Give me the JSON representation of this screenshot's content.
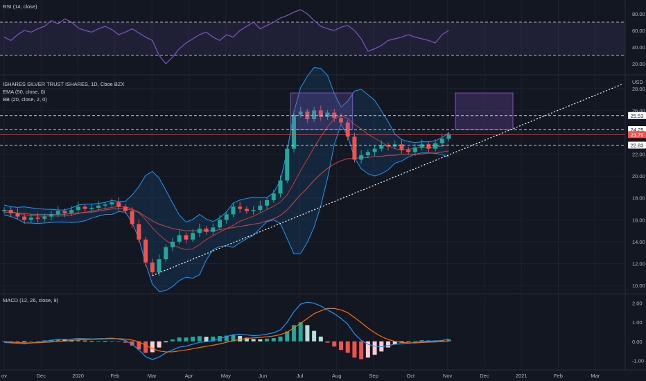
{
  "legends": {
    "rsi": "RSI (14, close)",
    "price_title": "ISHARES SILVER TRUST ISHARES, 1D, Cboe BZX",
    "ema": "EMA (50, close, 0)",
    "bb": "BB (20, close, 2, 0)",
    "macd": "MACD (12, 26, close, 9)"
  },
  "currency": "USD",
  "time_axis": [
    "ov",
    "Dec",
    "2020",
    "Feb",
    "Mar",
    "Apr",
    "May",
    "Jun",
    "Jul",
    "Aug",
    "Sep",
    "Oct",
    "Nov",
    "Dec",
    "2021",
    "Feb",
    "Mar"
  ],
  "price_tags": [
    {
      "label": "25.53",
      "value": 25.53,
      "bg": "#ffffff",
      "fg": "#131722"
    },
    {
      "label": "24.25",
      "value": 24.25,
      "bg": "#ffffff",
      "fg": "#131722"
    },
    {
      "label": "23.79",
      "value": 23.79,
      "bg": "#ef5350",
      "fg": "#ffffff"
    },
    {
      "label": "22.83",
      "value": 22.83,
      "bg": "#ffffff",
      "fg": "#131722"
    }
  ],
  "colors": {
    "background": "#131722",
    "grid": "#1e222d",
    "up": "#26a69a",
    "down": "#ef5350",
    "rsi_line": "#7e57c2",
    "rsi_band": "#7e57c2",
    "ema": "#ef5350",
    "bb_basis": "#f44336",
    "bb_band": "#2196f3",
    "macd_line": "#2196f3",
    "signal_line": "#ff6d00",
    "box": "#7e57c2",
    "trendline": "#ffffff"
  },
  "chart_data": [
    {
      "type": "line",
      "name": "RSI (14, close)",
      "ylim": [
        10,
        90
      ],
      "y_ticks": [
        "80.00",
        "60.00",
        "40.00",
        "20.00"
      ],
      "levels": [
        70,
        30
      ],
      "series": [
        {
          "values": [
            52,
            48,
            55,
            60,
            58,
            62,
            65,
            72,
            68,
            74,
            70,
            63,
            60,
            58,
            62,
            65,
            61,
            55,
            58,
            62,
            57,
            52,
            48,
            30,
            20,
            28,
            38,
            45,
            50,
            55,
            58,
            52,
            48,
            55,
            52,
            60,
            65,
            70,
            62,
            66,
            70,
            75,
            78,
            82,
            85,
            80,
            72,
            65,
            62,
            60,
            64,
            66,
            60,
            50,
            35,
            38,
            42,
            48,
            50,
            52,
            55,
            52,
            50,
            48,
            45,
            55,
            60
          ]
        }
      ]
    },
    {
      "type": "candlestick",
      "name": "ISHARES SILVER TRUST ISHARES, 1D, Cboe BZX",
      "ylim": [
        9.5,
        29
      ],
      "y_ticks": [
        "28.00",
        "26.00",
        "24.00",
        "22.00",
        "20.00",
        "18.00",
        "16.00",
        "14.00",
        "12.00",
        "10.00"
      ],
      "close": [
        16.9,
        16.6,
        16.3,
        16.0,
        16.2,
        16.1,
        16.3,
        16.5,
        16.8,
        16.6,
        16.9,
        17.2,
        17.0,
        17.1,
        17.3,
        17.4,
        17.6,
        17.2,
        16.8,
        15.6,
        14.2,
        12.1,
        11.2,
        12.4,
        13.5,
        14.0,
        14.6,
        14.2,
        14.8,
        15.2,
        14.9,
        15.3,
        16.0,
        16.5,
        17.2,
        17.0,
        16.8,
        16.9,
        17.3,
        17.8,
        18.4,
        19.6,
        22.5,
        25.6,
        25.9,
        25.2,
        26.0,
        25.4,
        25.8,
        25.3,
        24.9,
        23.6,
        21.5,
        21.9,
        22.2,
        22.5,
        22.8,
        22.7,
        22.9,
        22.4,
        22.2,
        22.6,
        22.9,
        22.5,
        23.0,
        23.4,
        23.79
      ],
      "ema50": [
        16.7,
        16.7,
        16.6,
        16.6,
        16.5,
        16.5,
        16.5,
        16.5,
        16.5,
        16.5,
        16.6,
        16.6,
        16.7,
        16.7,
        16.8,
        16.9,
        17.0,
        17.0,
        17.0,
        16.9,
        16.7,
        16.3,
        15.9,
        15.6,
        15.4,
        15.2,
        15.1,
        15.0,
        15.0,
        15.0,
        15.0,
        15.0,
        15.1,
        15.2,
        15.3,
        15.4,
        15.5,
        15.6,
        15.7,
        15.9,
        16.1,
        16.4,
        16.9,
        17.6,
        18.3,
        18.9,
        19.6,
        20.2,
        20.7,
        21.1,
        21.4,
        21.6,
        21.6,
        21.7,
        21.7,
        21.8,
        21.8,
        21.9,
        21.9,
        22.0,
        22.0,
        22.0,
        22.0,
        22.1,
        22.1,
        22.2,
        22.3
      ]
    },
    {
      "type": "line",
      "name": "MACD (12, 26, close, 9)",
      "ylim": [
        -1.35,
        2.35
      ],
      "y_ticks": [
        "2.00",
        "1.00",
        "0.00",
        "-1.00"
      ],
      "series": [
        {
          "values": [
            -0.05,
            -0.08,
            -0.1,
            -0.12,
            -0.08,
            -0.05,
            0.0,
            0.05,
            0.1,
            0.1,
            0.12,
            0.15,
            0.14,
            0.13,
            0.14,
            0.15,
            0.17,
            0.12,
            0.05,
            -0.15,
            -0.45,
            -0.8,
            -0.95,
            -0.82,
            -0.6,
            -0.45,
            -0.3,
            -0.25,
            -0.15,
            -0.05,
            -0.02,
            0.05,
            0.15,
            0.25,
            0.35,
            0.38,
            0.34,
            0.3,
            0.32,
            0.38,
            0.45,
            0.6,
            1.0,
            1.55,
            1.95,
            2.05,
            2.0,
            1.85,
            1.65,
            1.45,
            1.2,
            0.9,
            0.4,
            0.05,
            -0.15,
            -0.25,
            -0.28,
            -0.22,
            -0.15,
            -0.12,
            -0.1,
            -0.05,
            0.0,
            0.0,
            0.02,
            0.05,
            0.12
          ]
        },
        {
          "values": [
            -0.02,
            -0.04,
            -0.06,
            -0.08,
            -0.08,
            -0.07,
            -0.05,
            -0.03,
            0.0,
            0.02,
            0.05,
            0.08,
            0.1,
            0.11,
            0.12,
            0.13,
            0.14,
            0.14,
            0.12,
            0.07,
            -0.03,
            -0.2,
            -0.38,
            -0.5,
            -0.55,
            -0.55,
            -0.5,
            -0.45,
            -0.39,
            -0.32,
            -0.26,
            -0.2,
            -0.13,
            -0.05,
            0.03,
            0.1,
            0.15,
            0.18,
            0.21,
            0.24,
            0.28,
            0.35,
            0.48,
            0.7,
            0.95,
            1.2,
            1.45,
            1.6,
            1.72,
            1.72,
            1.65,
            1.5,
            1.25,
            0.98,
            0.7,
            0.45,
            0.25,
            0.1,
            0.0,
            -0.05,
            -0.08,
            -0.08,
            -0.06,
            -0.04,
            -0.03,
            -0.01,
            0.02
          ]
        }
      ]
    }
  ]
}
